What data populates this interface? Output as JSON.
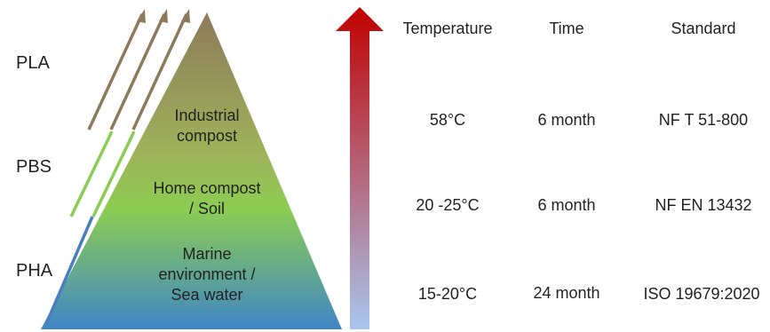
{
  "materials": [
    {
      "id": "pla",
      "label": "PLA",
      "color": "#8c7a5a"
    },
    {
      "id": "pbs",
      "label": "PBS",
      "color": "#8ccc55"
    },
    {
      "id": "pha",
      "label": "PHA",
      "color": "#4a7fbf"
    }
  ],
  "pyramid": {
    "tiers": [
      {
        "lines": [
          "Industrial",
          "compost"
        ]
      },
      {
        "lines": [
          "Home compost",
          "/ Soil"
        ]
      },
      {
        "lines": [
          "Marine",
          "environment /",
          "Sea water"
        ]
      }
    ],
    "colors": {
      "top": "#8c7a5a",
      "middle": "#8ccd52",
      "bottom": "#3f86c6"
    }
  },
  "arrow": {
    "colors": {
      "top": "#c00000",
      "bottom": "#a9c6ee"
    }
  },
  "table": {
    "headers": {
      "temperature": "Temperature",
      "time": "Time",
      "standard": "Standard"
    },
    "rows": [
      {
        "temperature": "58°C",
        "time": "6 month",
        "standard": "NF T 51-800"
      },
      {
        "temperature": "20 -25°C",
        "time": "6 month",
        "standard": "NF EN 13432"
      },
      {
        "temperature": "15-20°C",
        "time": "24 month",
        "standard": "ISO 19679:2020"
      }
    ]
  }
}
